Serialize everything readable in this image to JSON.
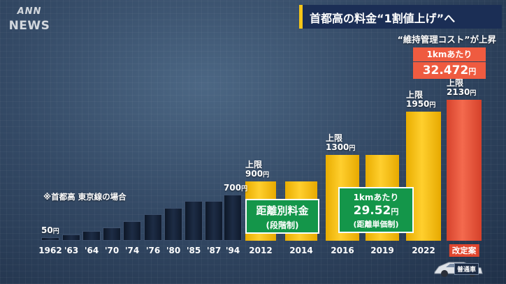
{
  "logo": {
    "line1": "ANN",
    "line2": "NEWS"
  },
  "title": "首都高の料金“1割値上げ”へ",
  "subtitle": "“維持管理コスト”が上昇",
  "note": "※首都高 東京線の場合",
  "car_label": "普通車",
  "highlight": {
    "line1": "1kmあたり",
    "value": "32.472",
    "unit": "円"
  },
  "colors": {
    "yellow": "#f7bd17",
    "red": "#ef5b40",
    "green": "#14964a",
    "title_bg": "#1b2e55"
  },
  "chart_data": {
    "type": "bar",
    "categories": [
      "1962",
      "'63",
      "'64",
      "'70",
      "'74",
      "'76",
      "'80",
      "'85",
      "'87",
      "'94",
      "2012",
      "2014",
      "2016",
      "2019",
      "2022",
      "改定案"
    ],
    "values": [
      50,
      100,
      150,
      200,
      300,
      400,
      500,
      600,
      600,
      700,
      900,
      900,
      1300,
      1300,
      1950,
      2130
    ],
    "bar_styles": [
      "dark",
      "dark",
      "dark",
      "dark",
      "dark",
      "dark",
      "dark",
      "dark",
      "dark",
      "dark",
      "yellow",
      "yellow",
      "yellow",
      "yellow",
      "yellow",
      "red"
    ],
    "ylim": [
      0,
      2130
    ],
    "value_labels": [
      {
        "index": 0,
        "lines": [
          "50"
        ],
        "unit": "円"
      },
      {
        "index": 9,
        "lines": [
          "700"
        ],
        "unit": "円"
      },
      {
        "index": 10,
        "lines": [
          "上限",
          "900"
        ],
        "unit": "円"
      },
      {
        "index": 12,
        "lines": [
          "上限",
          "1300"
        ],
        "unit": "円"
      },
      {
        "index": 14,
        "lines": [
          "上限",
          "1950"
        ],
        "unit": "円"
      },
      {
        "index": 15,
        "lines": [
          "上限",
          "2130"
        ],
        "unit": "円"
      }
    ],
    "annotations": {
      "distance_box": {
        "line1": "距離別料金",
        "line2": "(段階制)"
      },
      "per_km_box": {
        "line1": "1kmあたり",
        "value": "29.52",
        "unit": "円",
        "line3": "(距離単価制)"
      }
    }
  }
}
